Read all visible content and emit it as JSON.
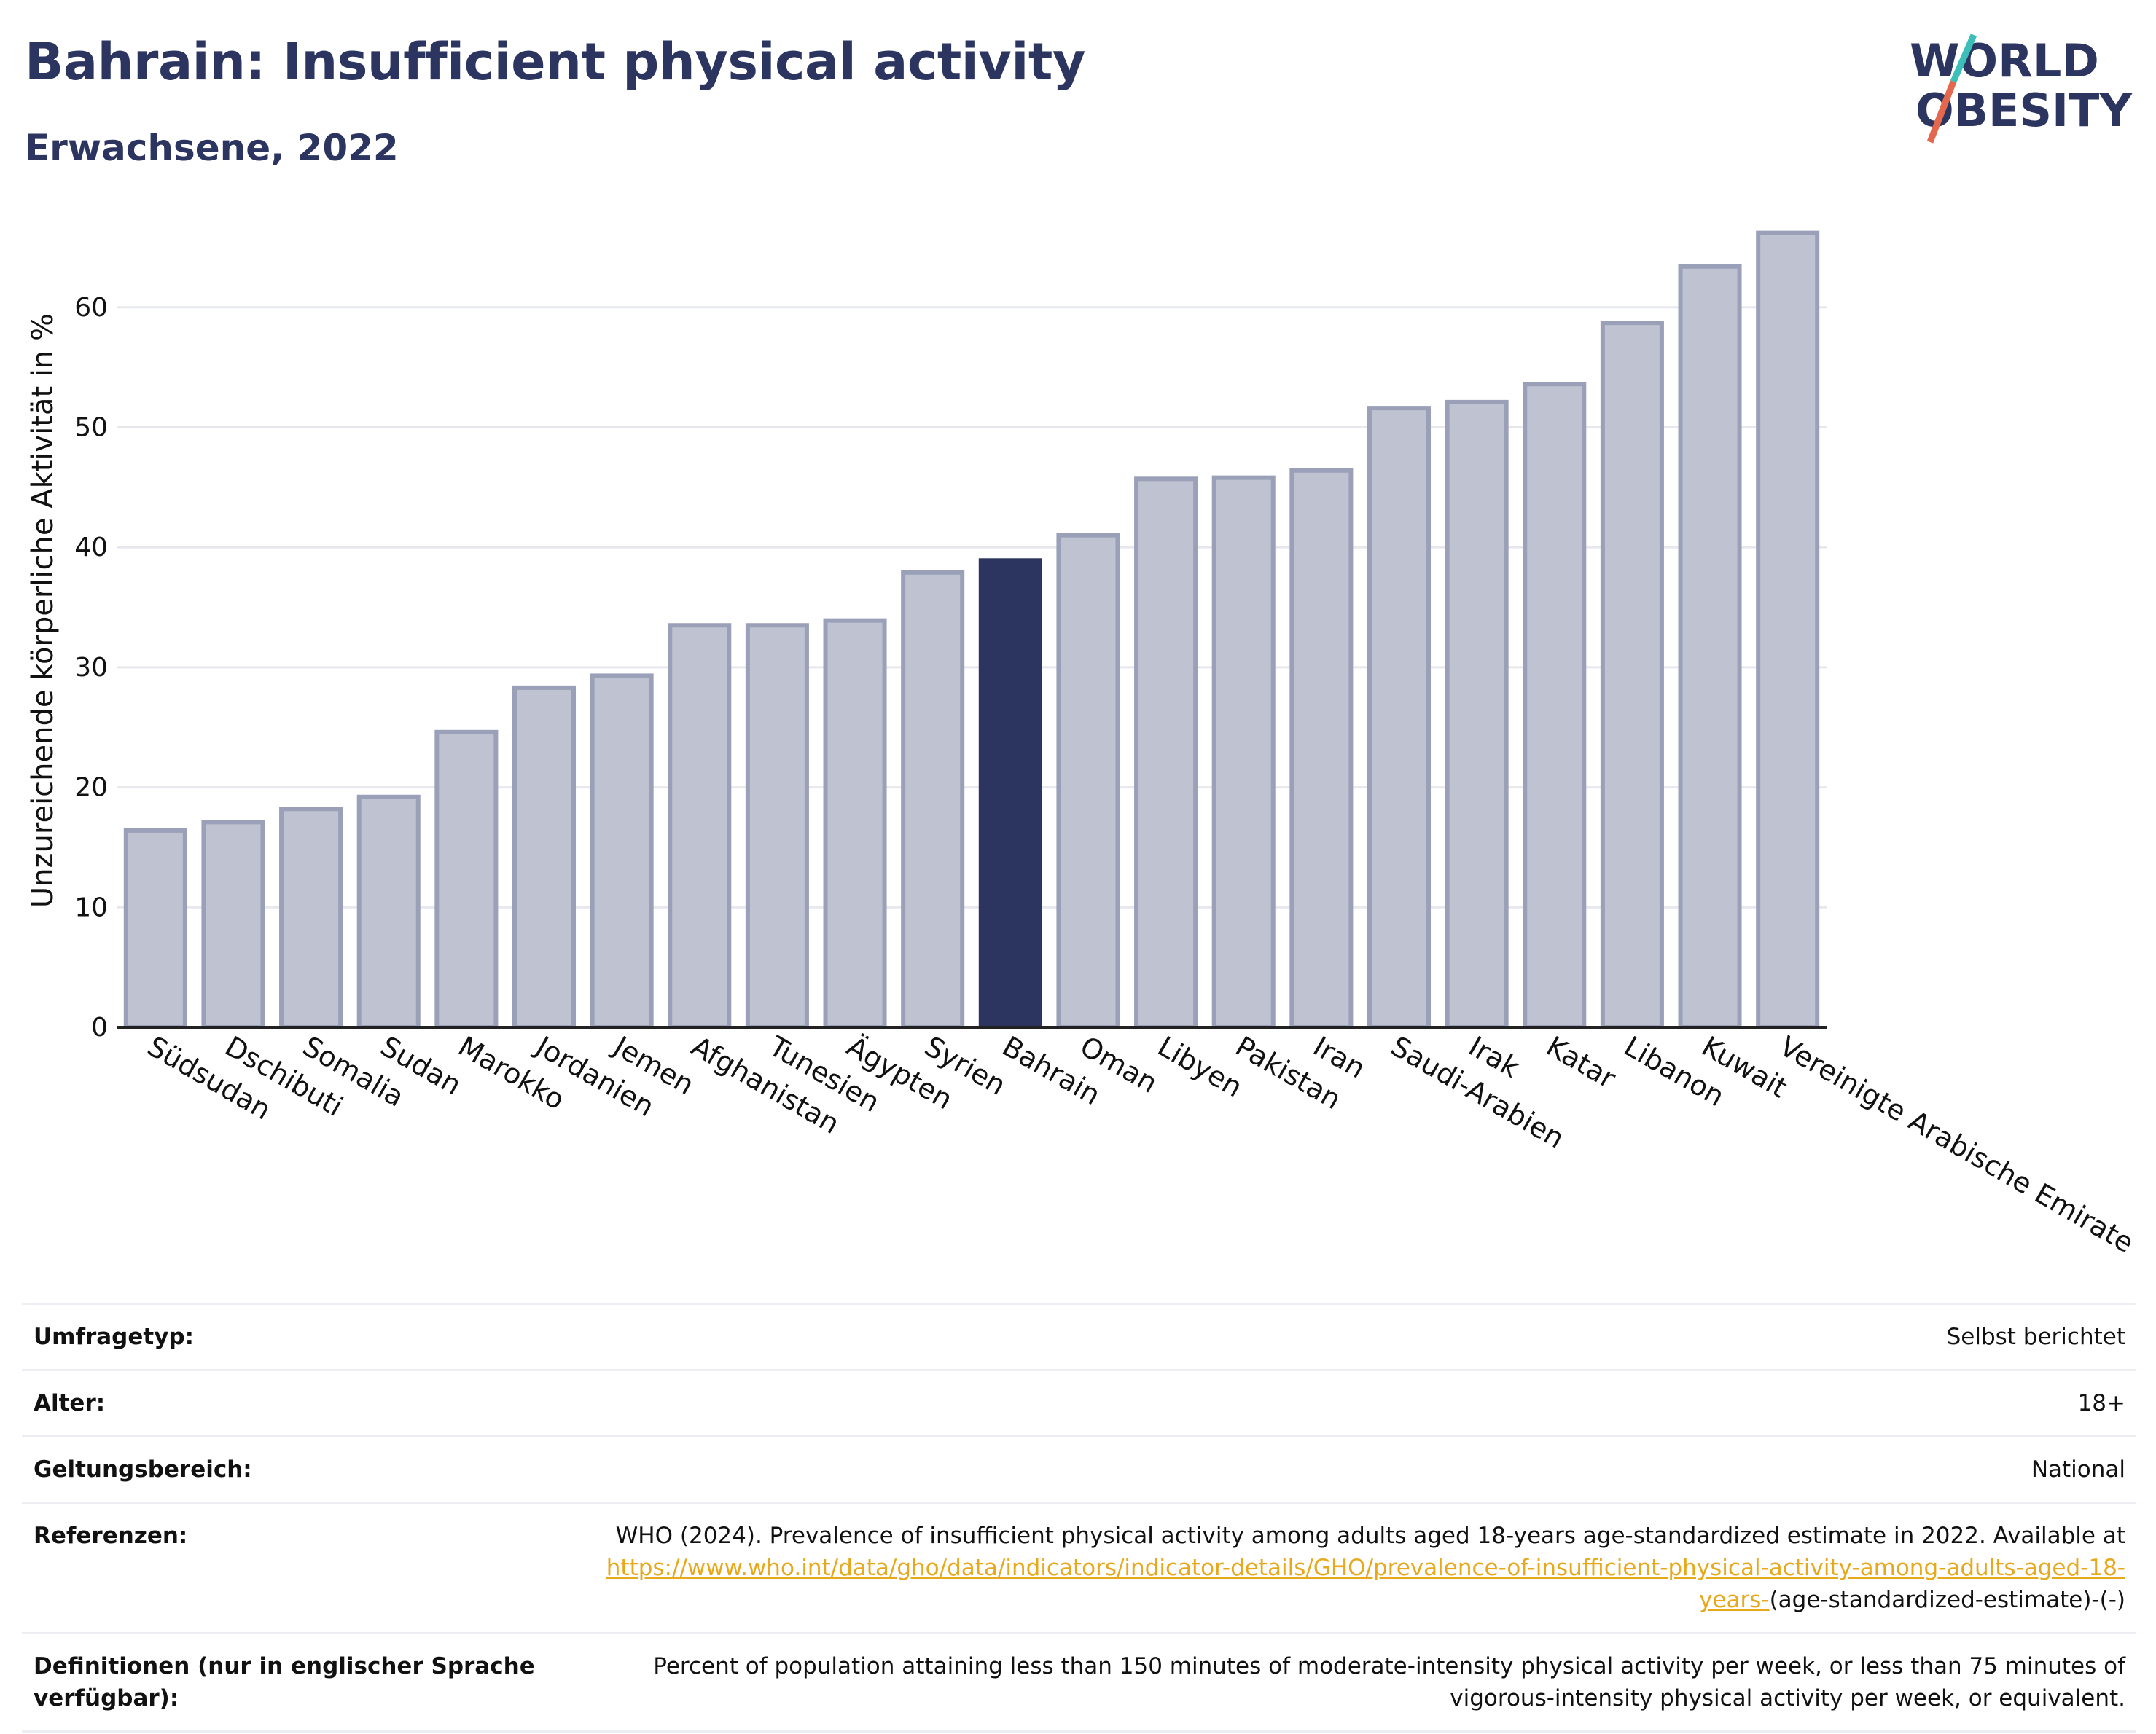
{
  "header": {
    "title": "Bahrain: Insufficient physical activity",
    "subtitle": "Erwachsene, 2022"
  },
  "logo": {
    "line1": "WORLD",
    "line2": "OBESITY",
    "colors": {
      "text": "#2b3560",
      "slash_top": "#3bbfb8",
      "slash_bottom": "#e4684e"
    }
  },
  "colors": {
    "bar_default": "#bfc2d0",
    "bar_default_stroke": "#9aa0b8",
    "bar_highlight": "#2b3560",
    "grid": "#e6e8ee",
    "axis": "#222222"
  },
  "chart_data": {
    "type": "bar",
    "ylabel": "Unzureichende körperliche Aktivität in %",
    "xlabel": "",
    "ylim": [
      0,
      68
    ],
    "yticks": [
      0,
      10,
      20,
      30,
      40,
      50,
      60
    ],
    "grid": true,
    "highlight": "Bahrain",
    "categories": [
      "Südsudan",
      "Dschibuti",
      "Somalia",
      "Sudan",
      "Marokko",
      "Jordanien",
      "Jemen",
      "Afghanistan",
      "Tunesien",
      "Ägypten",
      "Syrien",
      "Bahrain",
      "Oman",
      "Libyen",
      "Pakistan",
      "Iran",
      "Saudi-Arabien",
      "Irak",
      "Katar",
      "Libanon",
      "Kuwait",
      "Vereinigte Arabische Emirate"
    ],
    "values": [
      16.4,
      17.1,
      18.2,
      19.2,
      24.6,
      28.3,
      29.3,
      33.5,
      33.5,
      33.9,
      37.9,
      38.9,
      41.0,
      45.7,
      45.8,
      46.4,
      51.6,
      52.1,
      53.6,
      58.7,
      63.4,
      66.2
    ]
  },
  "table": {
    "rows": [
      {
        "label": "Umfragetyp:",
        "value": "Selbst berichtet"
      },
      {
        "label": "Alter:",
        "value": "18+"
      },
      {
        "label": "Geltungsbereich:",
        "value": "National"
      }
    ],
    "references": {
      "label": "Referenzen:",
      "text": "WHO (2024). Prevalence of insufficient physical activity among adults aged 18-years age-standardized estimate in 2022. Available at",
      "link": "https://www.who.int/data/gho/data/indicators/indicator-details/GHO/prevalence-of-insufficient-physical-activity-among-adults-aged-18-years-",
      "suffix": "(age-standardized-estimate)-(-)"
    },
    "definitions": {
      "label": "Definitionen (nur in englischer Sprache verfügbar):",
      "value": "Percent of population attaining less than 150 minutes of moderate-intensity physical activity per week, or less than 75 minutes of vigorous-intensity physical activity per week, or equivalent."
    }
  }
}
